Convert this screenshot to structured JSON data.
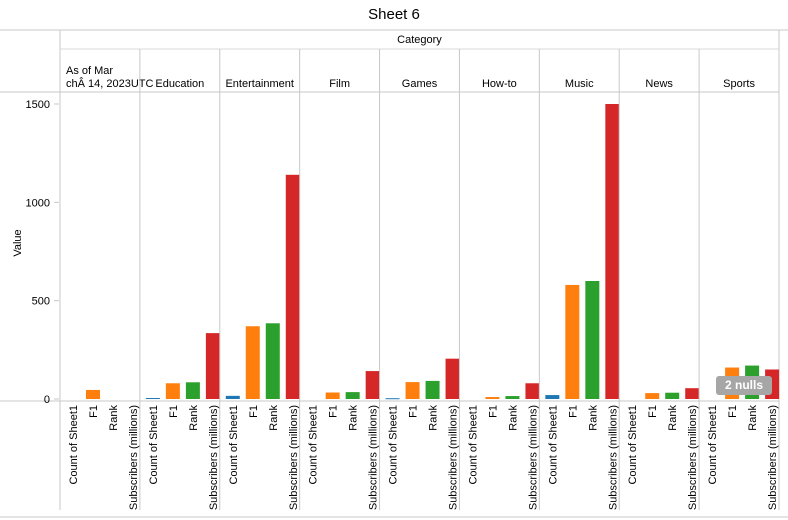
{
  "sheet_title": "Sheet 6",
  "nulls_badge": "2 nulls",
  "colors": {
    "Count of Sheet1": "#1f77b4",
    "F1": "#ff7f0e",
    "Rank": "#2ca02c",
    "Subscribers (millions)": "#d62728"
  },
  "chart_data": {
    "type": "bar",
    "title": "Sheet 6",
    "column_header": "Category",
    "ylabel": "Value",
    "ylim": [
      -40,
      1550
    ],
    "yticks": [
      0,
      500,
      1000,
      1500
    ],
    "measures": [
      "Count of Sheet1",
      "F1",
      "Rank",
      "Subscribers (millions)"
    ],
    "categories": [
      "As of MarchÂ 14, 2023UTC",
      "Education",
      "Entertainment",
      "Film",
      "Games",
      "How-to",
      "Music",
      "News",
      "Sports"
    ],
    "series": [
      {
        "name": "Count of Sheet1",
        "values": [
          null,
          5,
          16,
          null,
          4,
          null,
          20,
          null,
          null
        ]
      },
      {
        "name": "F1",
        "values": [
          46,
          80,
          370,
          33,
          86,
          10,
          580,
          30,
          160
        ]
      },
      {
        "name": "Rank",
        "values": [
          null,
          85,
          385,
          35,
          92,
          15,
          600,
          32,
          170
        ]
      },
      {
        "name": "Subscribers (millions)",
        "values": [
          null,
          335,
          1140,
          142,
          205,
          80,
          1500,
          55,
          150
        ]
      }
    ]
  }
}
